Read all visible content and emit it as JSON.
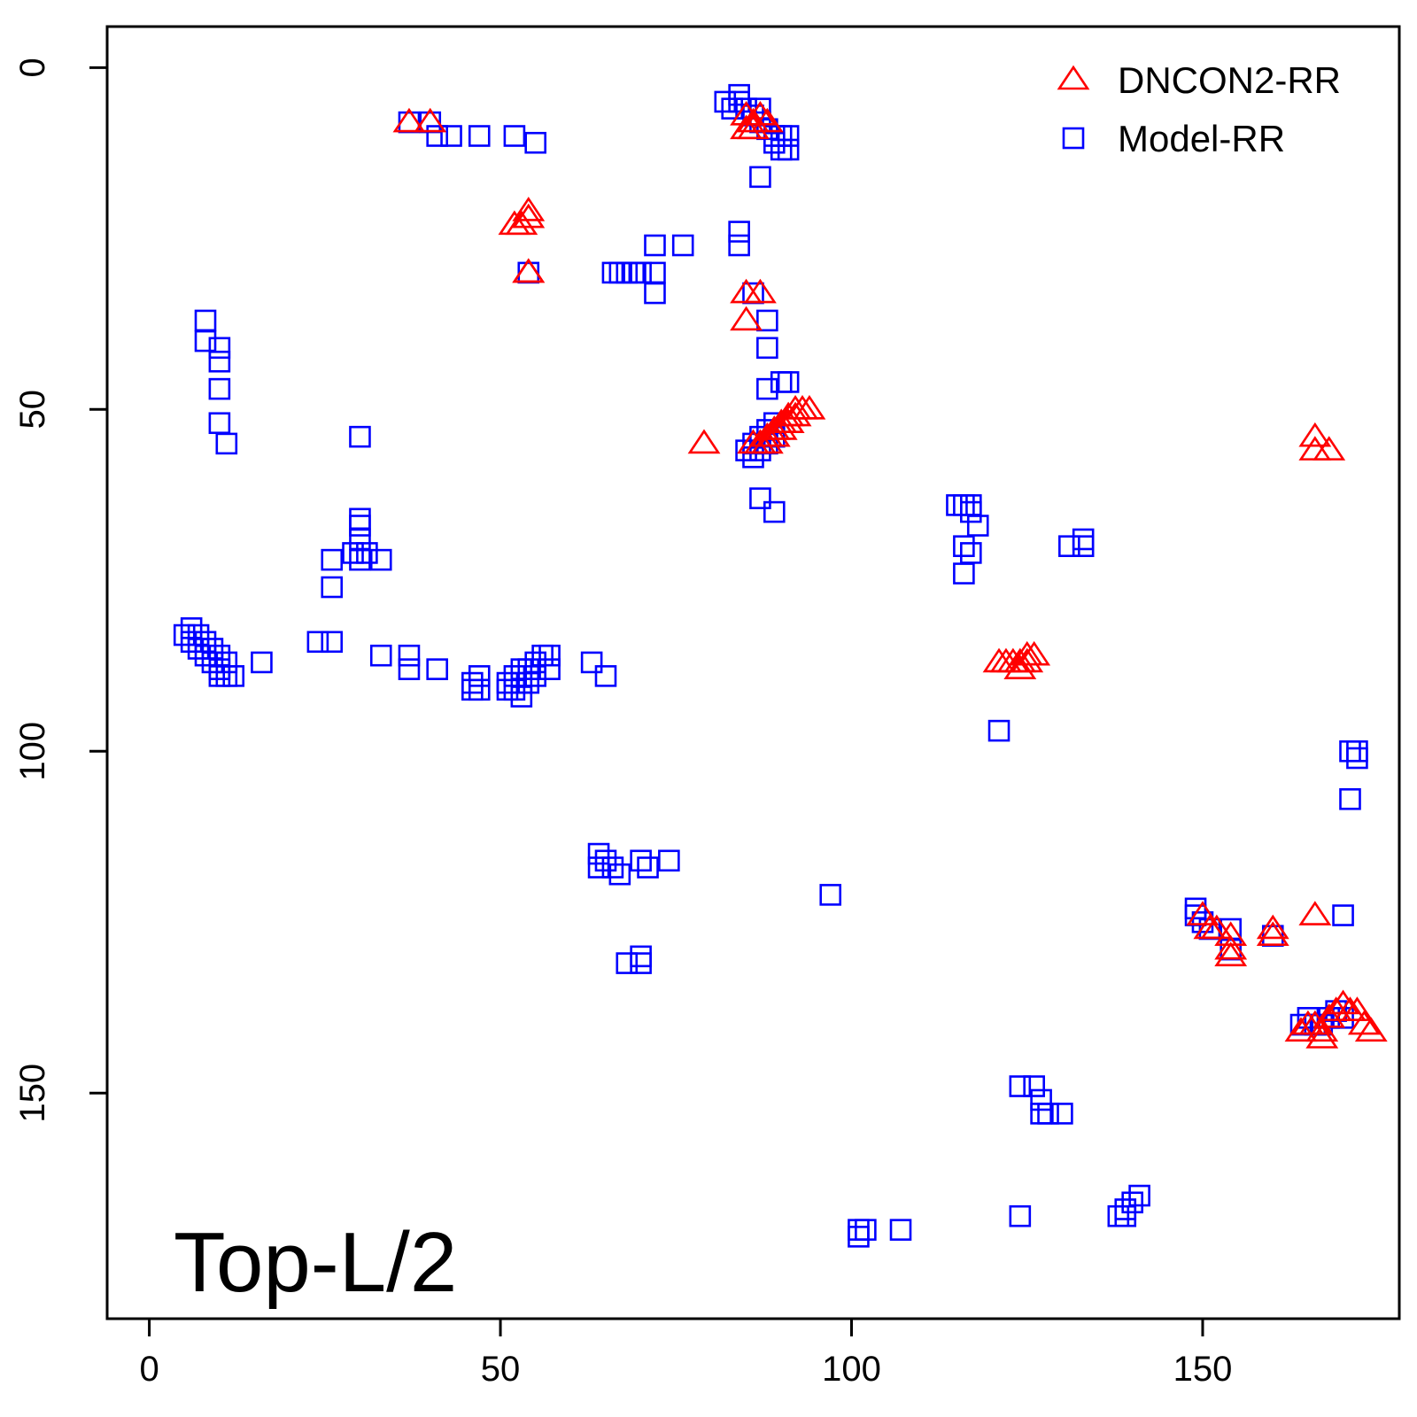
{
  "chart_data": {
    "type": "scatter",
    "title": "",
    "xlabel": "",
    "ylabel": "",
    "annotation": "Top-L/2",
    "xlim": [
      -6,
      178
    ],
    "ylim": [
      -6,
      183
    ],
    "y_reversed": true,
    "x_ticks": [
      0,
      50,
      100,
      150
    ],
    "y_ticks": [
      0,
      50,
      100,
      150
    ],
    "grid": false,
    "legend_position": "top-right",
    "series": [
      {
        "name": "DNCON2-RR",
        "marker": "triangle",
        "color": "#ff0000",
        "points": [
          [
            37,
            8
          ],
          [
            40,
            8
          ],
          [
            52,
            23
          ],
          [
            53,
            23
          ],
          [
            54,
            21
          ],
          [
            54,
            22
          ],
          [
            54,
            30
          ],
          [
            54,
            30
          ],
          [
            85,
            7
          ],
          [
            85,
            9
          ],
          [
            86,
            8
          ],
          [
            86,
            9
          ],
          [
            87,
            7
          ],
          [
            88,
            8
          ],
          [
            85,
            33
          ],
          [
            87,
            33
          ],
          [
            85,
            37
          ],
          [
            79,
            55
          ],
          [
            86,
            55
          ],
          [
            87,
            55
          ],
          [
            88,
            54
          ],
          [
            88,
            55
          ],
          [
            89,
            53
          ],
          [
            89,
            54
          ],
          [
            90,
            52
          ],
          [
            90,
            53
          ],
          [
            91,
            51
          ],
          [
            91,
            52
          ],
          [
            92,
            50
          ],
          [
            92,
            51
          ],
          [
            93,
            50
          ],
          [
            94,
            50
          ],
          [
            166,
            54
          ],
          [
            166,
            56
          ],
          [
            168,
            56
          ],
          [
            121,
            87
          ],
          [
            122,
            87
          ],
          [
            123,
            87
          ],
          [
            124,
            87
          ],
          [
            124,
            88
          ],
          [
            125,
            86
          ],
          [
            125,
            87
          ],
          [
            126,
            86
          ],
          [
            150,
            124
          ],
          [
            151,
            126
          ],
          [
            152,
            126
          ],
          [
            154,
            127
          ],
          [
            154,
            129
          ],
          [
            154,
            130
          ],
          [
            160,
            126
          ],
          [
            160,
            127
          ],
          [
            166,
            124
          ],
          [
            164,
            141
          ],
          [
            165,
            140
          ],
          [
            166,
            140
          ],
          [
            167,
            141
          ],
          [
            168,
            139
          ],
          [
            169,
            138
          ],
          [
            170,
            137
          ],
          [
            171,
            138
          ],
          [
            172,
            138
          ],
          [
            173,
            140
          ],
          [
            174,
            141
          ],
          [
            167,
            142
          ]
        ]
      },
      {
        "name": "Model-RR",
        "marker": "square",
        "color": "#0000ff",
        "points": [
          [
            37,
            8
          ],
          [
            40,
            8
          ],
          [
            41,
            10
          ],
          [
            43,
            10
          ],
          [
            47,
            10
          ],
          [
            52,
            10
          ],
          [
            55,
            11
          ],
          [
            82,
            5
          ],
          [
            83,
            6
          ],
          [
            84,
            4
          ],
          [
            84,
            5
          ],
          [
            85,
            6
          ],
          [
            86,
            7
          ],
          [
            87,
            6
          ],
          [
            87,
            8
          ],
          [
            88,
            9
          ],
          [
            89,
            10
          ],
          [
            89,
            11
          ],
          [
            90,
            10
          ],
          [
            90,
            12
          ],
          [
            91,
            10
          ],
          [
            91,
            12
          ],
          [
            87,
            16
          ],
          [
            54,
            30
          ],
          [
            66,
            30
          ],
          [
            67,
            30
          ],
          [
            68,
            30
          ],
          [
            69,
            30
          ],
          [
            70,
            30
          ],
          [
            72,
            30
          ],
          [
            72,
            33
          ],
          [
            72,
            26
          ],
          [
            76,
            26
          ],
          [
            84,
            24
          ],
          [
            84,
            26
          ],
          [
            86,
            33
          ],
          [
            88,
            37
          ],
          [
            88,
            41
          ],
          [
            8,
            37
          ],
          [
            8,
            40
          ],
          [
            10,
            41
          ],
          [
            10,
            43
          ],
          [
            10,
            47
          ],
          [
            10,
            52
          ],
          [
            11,
            55
          ],
          [
            30,
            54
          ],
          [
            88,
            47
          ],
          [
            90,
            46
          ],
          [
            91,
            46
          ],
          [
            85,
            56
          ],
          [
            86,
            55
          ],
          [
            86,
            57
          ],
          [
            87,
            54
          ],
          [
            87,
            56
          ],
          [
            88,
            53
          ],
          [
            88,
            55
          ],
          [
            89,
            52
          ],
          [
            89,
            54
          ],
          [
            87,
            63
          ],
          [
            89,
            65
          ],
          [
            30,
            66
          ],
          [
            30,
            67
          ],
          [
            30,
            69
          ],
          [
            29,
            71
          ],
          [
            31,
            71
          ],
          [
            26,
            72
          ],
          [
            30,
            72
          ],
          [
            33,
            72
          ],
          [
            26,
            76
          ],
          [
            5,
            83
          ],
          [
            6,
            82
          ],
          [
            6,
            84
          ],
          [
            7,
            83
          ],
          [
            7,
            85
          ],
          [
            8,
            84
          ],
          [
            8,
            86
          ],
          [
            9,
            85
          ],
          [
            9,
            87
          ],
          [
            10,
            86
          ],
          [
            10,
            88
          ],
          [
            11,
            87
          ],
          [
            11,
            89
          ],
          [
            12,
            89
          ],
          [
            10,
            89
          ],
          [
            16,
            87
          ],
          [
            24,
            84
          ],
          [
            26,
            84
          ],
          [
            33,
            86
          ],
          [
            37,
            86
          ],
          [
            37,
            88
          ],
          [
            41,
            88
          ],
          [
            46,
            90
          ],
          [
            47,
            89
          ],
          [
            47,
            91
          ],
          [
            46,
            91
          ],
          [
            51,
            90
          ],
          [
            51,
            91
          ],
          [
            52,
            89
          ],
          [
            52,
            91
          ],
          [
            53,
            88
          ],
          [
            53,
            90
          ],
          [
            53,
            92
          ],
          [
            54,
            88
          ],
          [
            54,
            90
          ],
          [
            55,
            87
          ],
          [
            55,
            89
          ],
          [
            56,
            86
          ],
          [
            57,
            86
          ],
          [
            57,
            88
          ],
          [
            63,
            87
          ],
          [
            65,
            89
          ],
          [
            115,
            64
          ],
          [
            116,
            64
          ],
          [
            117,
            64
          ],
          [
            117,
            65
          ],
          [
            118,
            67
          ],
          [
            116,
            70
          ],
          [
            117,
            71
          ],
          [
            116,
            74
          ],
          [
            131,
            70
          ],
          [
            133,
            69
          ],
          [
            133,
            70
          ],
          [
            121,
            97
          ],
          [
            172,
            100
          ],
          [
            172,
            101
          ],
          [
            171,
            100
          ],
          [
            171,
            107
          ],
          [
            170,
            124
          ],
          [
            64,
            115
          ],
          [
            64,
            117
          ],
          [
            65,
            116
          ],
          [
            66,
            117
          ],
          [
            67,
            118
          ],
          [
            70,
            116
          ],
          [
            71,
            117
          ],
          [
            74,
            116
          ],
          [
            68,
            131
          ],
          [
            70,
            130
          ],
          [
            70,
            131
          ],
          [
            97,
            121
          ],
          [
            149,
            123
          ],
          [
            149,
            124
          ],
          [
            150,
            125
          ],
          [
            151,
            126
          ],
          [
            154,
            126
          ],
          [
            154,
            129
          ],
          [
            160,
            127
          ],
          [
            164,
            140
          ],
          [
            165,
            139
          ],
          [
            166,
            140
          ],
          [
            167,
            140
          ],
          [
            168,
            139
          ],
          [
            169,
            138
          ],
          [
            170,
            139
          ],
          [
            124,
            149
          ],
          [
            126,
            149
          ],
          [
            127,
            151
          ],
          [
            127,
            153
          ],
          [
            128,
            153
          ],
          [
            130,
            153
          ],
          [
            124,
            168
          ],
          [
            101,
            170
          ],
          [
            101,
            171
          ],
          [
            102,
            170
          ],
          [
            107,
            170
          ],
          [
            138,
            168
          ],
          [
            139,
            167
          ],
          [
            140,
            166
          ],
          [
            141,
            165
          ],
          [
            139,
            168
          ]
        ]
      }
    ]
  }
}
